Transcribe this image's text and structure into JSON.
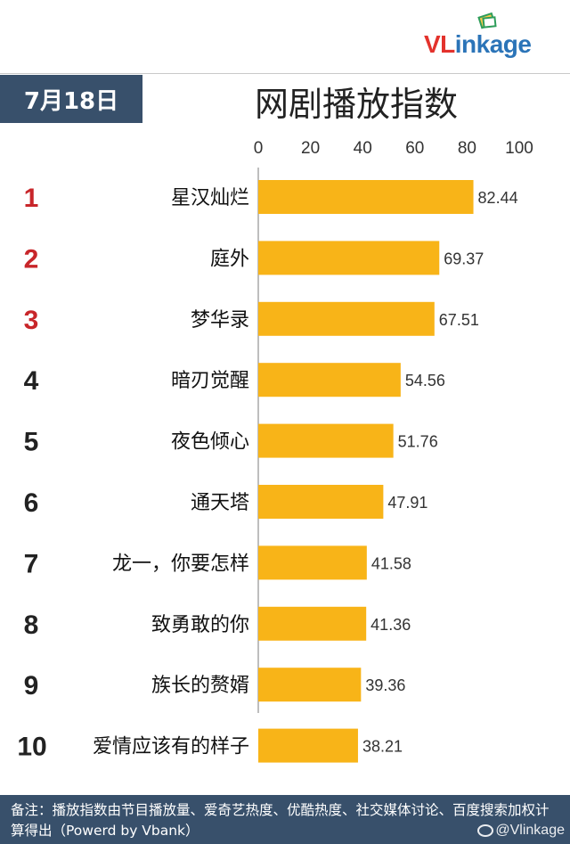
{
  "logo": {
    "prefix": "VL",
    "suffix": "inkage"
  },
  "date": "7月18日",
  "footer_note": "备注：播放指数由节目播放量、爱奇艺热度、优酷热度、社交媒体讨论、百度搜索加权计算得出（Powerd by Vbank）",
  "watermark": "@Vlinkage",
  "colors": {
    "bar": "#f8b418",
    "badge": "#38506b",
    "top_rank": "#c8262a",
    "rank": "#222222",
    "logo_red": "#e3322c",
    "logo_blue": "#2b74b8"
  },
  "chart_data": {
    "type": "bar",
    "orientation": "horizontal",
    "title": "网剧播放指数",
    "xlim": [
      0,
      100
    ],
    "xticks": [
      0,
      20,
      40,
      60,
      80,
      100
    ],
    "categories": [
      "星汉灿烂",
      "庭外",
      "梦华录",
      "暗刃觉醒",
      "夜色倾心",
      "通天塔",
      "龙一，你要怎样",
      "致勇敢的你",
      "族长的赘婿",
      "爱情应该有的样子"
    ],
    "ranks": [
      "1",
      "2",
      "3",
      "4",
      "5",
      "6",
      "7",
      "8",
      "9",
      "10"
    ],
    "values": [
      82.44,
      69.37,
      67.51,
      54.56,
      51.76,
      47.91,
      41.58,
      41.36,
      39.36,
      38.21
    ],
    "value_labels": [
      "82.44",
      "69.37",
      "67.51",
      "54.56",
      "51.76",
      "47.91",
      "41.58",
      "41.36",
      "39.36",
      "38.21"
    ],
    "grid": false,
    "xaxis_position": "top"
  }
}
